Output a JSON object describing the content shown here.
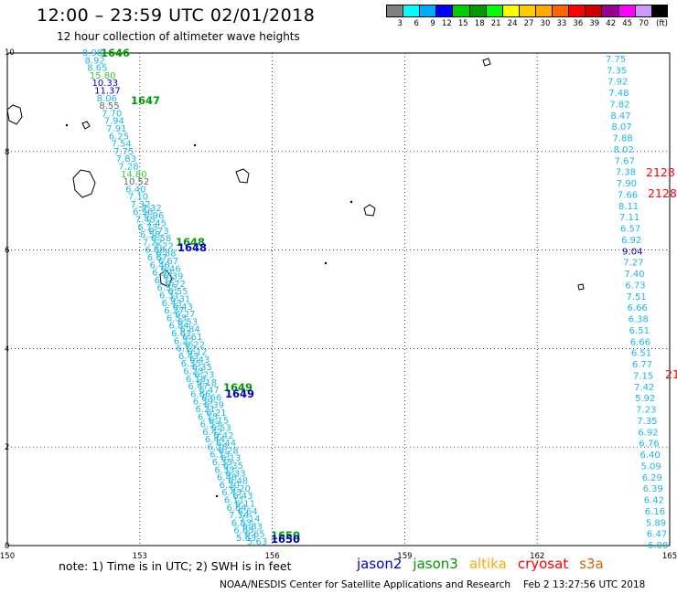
{
  "header": {
    "title": "12:00 – 23:59 UTC 02/01/2018",
    "subtitle": "12 hour collection of altimeter wave heights"
  },
  "color_scale": {
    "colors": [
      "#808080",
      "#00ffff",
      "#00aaff",
      "#0000ff",
      "#00cc00",
      "#009900",
      "#00ff00",
      "#ffff00",
      "#ffcc00",
      "#ffaa00",
      "#ff6600",
      "#ff0000",
      "#cc0000",
      "#990099",
      "#ff00ff",
      "#cc99ff",
      "#000000"
    ],
    "labels": [
      "3",
      "6",
      "9",
      "12",
      "15",
      "18",
      "21",
      "24",
      "27",
      "30",
      "33",
      "36",
      "39",
      "42",
      "45",
      "70"
    ],
    "unit": "(ft)"
  },
  "map": {
    "lon_ticks": [
      "150",
      "153",
      "156",
      "159",
      "162",
      "165"
    ],
    "lat_ticks": [
      "0",
      "2",
      "4",
      "6",
      "8",
      "10"
    ],
    "lon_range": [
      150,
      165
    ],
    "lat_range": [
      0,
      10
    ],
    "colors": {
      "cyan": "#1ab8e6",
      "green": "#009900",
      "blue": "#0000cc",
      "red": "#ff0000",
      "lightgreen": "#33cc33",
      "gray": "#666666"
    },
    "left_track_top": [
      {
        "t": "8.98",
        "c": "cyan"
      },
      {
        "t": "8.92",
        "c": "cyan"
      },
      {
        "t": "8.65",
        "c": "cyan"
      },
      {
        "t": "15.80",
        "c": "lightgreen"
      },
      {
        "t": "10.33",
        "c": "blue"
      },
      {
        "t": "11.37",
        "c": "blue"
      },
      {
        "t": "8.06",
        "c": "cyan"
      },
      {
        "t": "8.55",
        "c": "gray"
      },
      {
        "t": "7.70",
        "c": "cyan"
      },
      {
        "t": "7.94",
        "c": "cyan"
      },
      {
        "t": "7.91",
        "c": "cyan"
      },
      {
        "t": "6.25",
        "c": "cyan"
      },
      {
        "t": "7.54",
        "c": "cyan"
      },
      {
        "t": "7.75",
        "c": "cyan"
      },
      {
        "t": "7.83",
        "c": "cyan"
      },
      {
        "t": "7.28",
        "c": "cyan"
      },
      {
        "t": "14.80",
        "c": "lightgreen"
      },
      {
        "t": "10.52",
        "c": "gray"
      },
      {
        "t": "6.40",
        "c": "cyan"
      },
      {
        "t": "7.10",
        "c": "cyan"
      },
      {
        "t": "7.32",
        "c": "cyan"
      },
      {
        "t": "6.96",
        "c": "cyan"
      },
      {
        "t": "7.45",
        "c": "cyan"
      },
      {
        "t": "6.73",
        "c": "cyan"
      },
      {
        "t": "6.58",
        "c": "cyan"
      },
      {
        "t": "7.22",
        "c": "cyan"
      },
      {
        "t": "6.88",
        "c": "cyan"
      },
      {
        "t": "6.67",
        "c": "cyan"
      },
      {
        "t": "6.46",
        "c": "cyan"
      },
      {
        "t": "6.39",
        "c": "cyan"
      },
      {
        "t": "6.72",
        "c": "cyan"
      },
      {
        "t": "6.55",
        "c": "cyan"
      },
      {
        "t": "6.31",
        "c": "cyan"
      },
      {
        "t": "6.43",
        "c": "cyan"
      },
      {
        "t": "6.27",
        "c": "cyan"
      },
      {
        "t": "6.53",
        "c": "cyan"
      },
      {
        "t": "6.84",
        "c": "cyan"
      },
      {
        "t": "6.61",
        "c": "cyan"
      },
      {
        "t": "6.22",
        "c": "cyan"
      },
      {
        "t": "6.12",
        "c": "cyan"
      },
      {
        "t": "6.43",
        "c": "cyan"
      },
      {
        "t": "6.35",
        "c": "cyan"
      },
      {
        "t": "6.23",
        "c": "cyan"
      },
      {
        "t": "6.18",
        "c": "cyan"
      },
      {
        "t": "6.47",
        "c": "cyan"
      },
      {
        "t": "6.66",
        "c": "cyan"
      },
      {
        "t": "6.39",
        "c": "cyan"
      },
      {
        "t": "6.21",
        "c": "cyan"
      },
      {
        "t": "6.15",
        "c": "cyan"
      },
      {
        "t": "6.53",
        "c": "cyan"
      },
      {
        "t": "6.42",
        "c": "cyan"
      },
      {
        "t": "6.44",
        "c": "cyan"
      },
      {
        "t": "6.28",
        "c": "cyan"
      },
      {
        "t": "6.13",
        "c": "cyan"
      },
      {
        "t": "6.35",
        "c": "cyan"
      },
      {
        "t": "6.33",
        "c": "cyan"
      },
      {
        "t": "6.48",
        "c": "cyan"
      },
      {
        "t": "6.20",
        "c": "cyan"
      },
      {
        "t": "6.43",
        "c": "cyan"
      },
      {
        "t": "6.11",
        "c": "cyan"
      },
      {
        "t": "6.64",
        "c": "cyan"
      },
      {
        "t": "7.14",
        "c": "cyan"
      },
      {
        "t": "6.83",
        "c": "cyan"
      },
      {
        "t": "6.65",
        "c": "cyan"
      },
      {
        "t": "5.63",
        "c": "cyan"
      }
    ],
    "left_labels": [
      {
        "t": "1646",
        "c": "green"
      },
      {
        "t": "1647",
        "c": "green"
      },
      {
        "t": "1648",
        "c": "green"
      },
      {
        "t": "1648",
        "c": "blue"
      },
      {
        "t": "1649",
        "c": "green"
      },
      {
        "t": "1649",
        "c": "blue"
      },
      {
        "t": "1650",
        "c": "green"
      },
      {
        "t": "1650",
        "c": "blue"
      }
    ],
    "right_track": [
      "7.75",
      "7.35",
      "7.92",
      "7.48",
      "7.82",
      "8.47",
      "8.07",
      "7.88",
      "8.02",
      "7.67",
      "7.38",
      "7.90",
      "7.66",
      "8.11",
      "7.11",
      "6.57",
      "6.92",
      "9.04",
      "7.27",
      "7.40",
      "6.73",
      "7.51",
      "6.66",
      "6.38",
      "6.51",
      "6.66",
      "6.51",
      "6.77",
      "7.15",
      "7.42",
      "5.92",
      "7.23",
      "7.35",
      "6.92",
      "6.76",
      "6.40",
      "5.09",
      "6.29",
      "6.39",
      "6.42",
      "6.16",
      "5.89",
      "6.47",
      "6.00"
    ],
    "right_labels": [
      "2128",
      "2128",
      "21"
    ]
  },
  "footer": {
    "note": "note:  1) Time is in UTC;  2) SWH is in feet",
    "satellites": [
      {
        "name": "jason2",
        "color": "#0000cc"
      },
      {
        "name": "jason3",
        "color": "#009900"
      },
      {
        "name": "altika",
        "color": "#ffaa00"
      },
      {
        "name": "cryosat",
        "color": "#ff0000"
      },
      {
        "name": "s3a",
        "color": "#cc6600"
      }
    ],
    "credit": "NOAA/NESDIS Center for Satellite Applications and Research",
    "timestamp": "Feb  2 13:27:56 UTC 2018"
  }
}
